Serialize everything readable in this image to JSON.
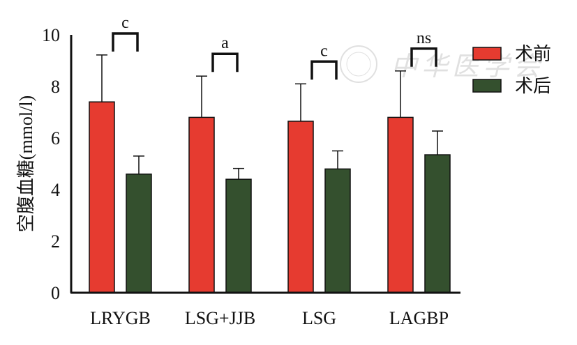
{
  "chart_data": {
    "type": "bar",
    "title": "",
    "xlabel": "",
    "ylabel": "空腹血糖(mmol/l)",
    "ylim": [
      0,
      10
    ],
    "yticks": [
      "0",
      "2",
      "4",
      "6",
      "8",
      "10"
    ],
    "grid": false,
    "legend_position": "top-right",
    "categories": [
      "LRYGB",
      "LSG+JJB",
      "LSG",
      "LAGBP"
    ],
    "series": [
      {
        "name": "术前",
        "color": "#e63b30",
        "values": [
          7.4,
          6.8,
          6.65,
          6.8
        ],
        "error": [
          1.82,
          1.6,
          1.45,
          1.8
        ]
      },
      {
        "name": "术后",
        "color": "#34502e",
        "values": [
          4.6,
          4.4,
          4.8,
          5.35
        ],
        "error": [
          0.7,
          0.42,
          0.7,
          0.92
        ]
      }
    ],
    "significance": [
      "c",
      "a",
      "c",
      "ns"
    ],
    "watermark": "中华医学会"
  }
}
